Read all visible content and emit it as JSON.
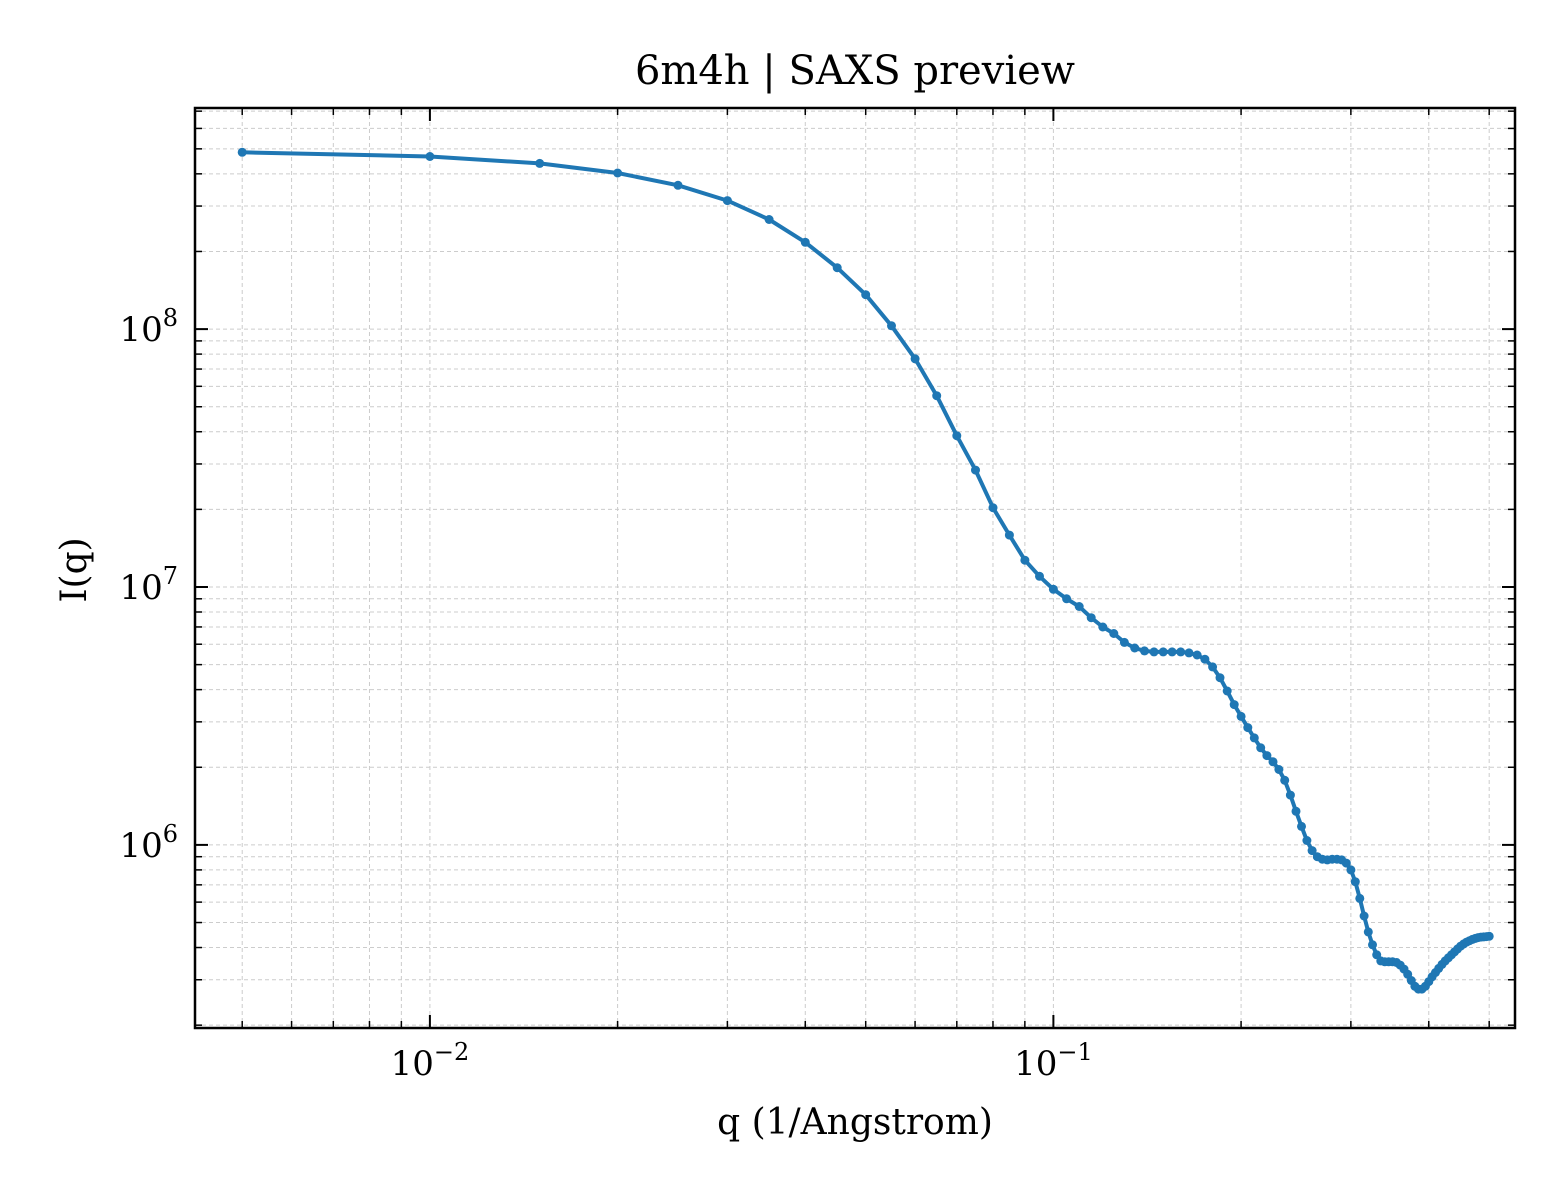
{
  "chart_data": {
    "type": "line",
    "title": "6m4h | SAXS preview",
    "xlabel": "q (1/Angstrom)",
    "ylabel": "I(q)",
    "xscale": "log",
    "yscale": "log",
    "xlim": [
      0.0042,
      0.55
    ],
    "ylim": [
      195000,
      720000000
    ],
    "grid": true,
    "legend": "none",
    "xticks": [
      {
        "value": 0.01,
        "mantissa": "10",
        "exp": "−2"
      },
      {
        "value": 0.1,
        "mantissa": "10",
        "exp": "−1"
      }
    ],
    "yticks": [
      {
        "value": 1000000,
        "mantissa": "10",
        "exp": "6"
      },
      {
        "value": 10000000,
        "mantissa": "10",
        "exp": "7"
      },
      {
        "value": 100000000,
        "mantissa": "10",
        "exp": "8"
      }
    ],
    "colors": {
      "series": "#1f77b4",
      "grid": "#cccccc",
      "axes": "#000000"
    },
    "series": [
      {
        "x": [
          0.005,
          0.01,
          0.015,
          0.02,
          0.025,
          0.03,
          0.035,
          0.04,
          0.045,
          0.05,
          0.055,
          0.06,
          0.065,
          0.07,
          0.075,
          0.08,
          0.085,
          0.09,
          0.095,
          0.1,
          0.105,
          0.11,
          0.115,
          0.12,
          0.125,
          0.13,
          0.135,
          0.14,
          0.145,
          0.15,
          0.155,
          0.16,
          0.165,
          0.17,
          0.175,
          0.18,
          0.185,
          0.19,
          0.195,
          0.2,
          0.205,
          0.21,
          0.215,
          0.22,
          0.225,
          0.23,
          0.235,
          0.24,
          0.245,
          0.25,
          0.255,
          0.26,
          0.265,
          0.27,
          0.275,
          0.28,
          0.285,
          0.29,
          0.295,
          0.3,
          0.305,
          0.31,
          0.315,
          0.32,
          0.325,
          0.33,
          0.335,
          0.34,
          0.345,
          0.35,
          0.355,
          0.36,
          0.365,
          0.37,
          0.375,
          0.38,
          0.385,
          0.39,
          0.395,
          0.4,
          0.405,
          0.41,
          0.415,
          0.42,
          0.425,
          0.43,
          0.435,
          0.44,
          0.445,
          0.45,
          0.455,
          0.46,
          0.465,
          0.47,
          0.475,
          0.48,
          0.485,
          0.49,
          0.495,
          0.5
        ],
        "y": [
          485000000,
          467000000,
          439000000,
          403000000,
          361000000,
          315000000,
          266000000,
          217000000,
          173000000,
          136000000,
          103000000,
          76700000,
          55200000,
          38600000,
          28400000,
          20300000,
          15900000,
          12700000,
          11000000,
          9800000,
          9000000,
          8400000,
          7600000,
          7000000,
          6600000,
          6100000,
          5800000,
          5650000,
          5600000,
          5600000,
          5600000,
          5600000,
          5550000,
          5450000,
          5250000,
          4900000,
          4450000,
          3950000,
          3500000,
          3150000,
          2850000,
          2600000,
          2380000,
          2220000,
          2100000,
          1960000,
          1780000,
          1560000,
          1350000,
          1180000,
          1040000,
          950000,
          900000,
          880000,
          875000,
          880000,
          880000,
          875000,
          850000,
          800000,
          720000,
          620000,
          530000,
          460000,
          410000,
          375000,
          355000,
          352000,
          352000,
          352000,
          350000,
          342000,
          330000,
          315000,
          298000,
          283000,
          276000,
          276000,
          283000,
          295000,
          308000,
          320000,
          332000,
          344000,
          355000,
          365000,
          375000,
          385000,
          395000,
          405000,
          413000,
          420000,
          425000,
          430000,
          434000,
          437000,
          439000,
          440000,
          441000,
          442000
        ]
      }
    ]
  }
}
